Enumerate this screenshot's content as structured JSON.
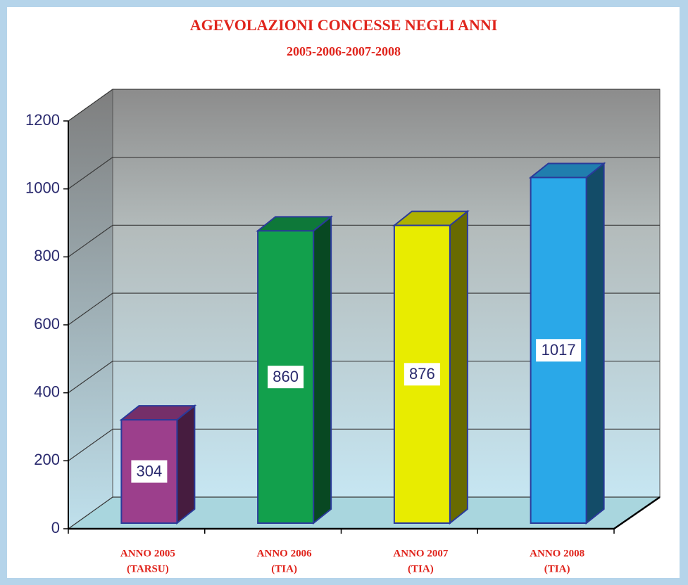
{
  "chart_data": {
    "type": "bar3d",
    "title": "AGEVOLAZIONI CONCESSE NEGLI ANNI",
    "subtitle": "2005-2006-2007-2008",
    "categories": [
      [
        "ANNO 2005",
        "(TARSU)"
      ],
      [
        "ANNO 2006",
        "(TIA)"
      ],
      [
        "ANNO 2007",
        "(TIA)"
      ],
      [
        "ANNO 2008",
        "(TIA)"
      ]
    ],
    "values": [
      304,
      860,
      876,
      1017
    ],
    "colors": [
      "#9c3f8c",
      "#12a04c",
      "#e8ec00",
      "#2aa8e8"
    ],
    "ylim": [
      0,
      1200
    ],
    "yticks": [
      0,
      200,
      400,
      600,
      800,
      1000,
      1200
    ],
    "grid": true
  }
}
